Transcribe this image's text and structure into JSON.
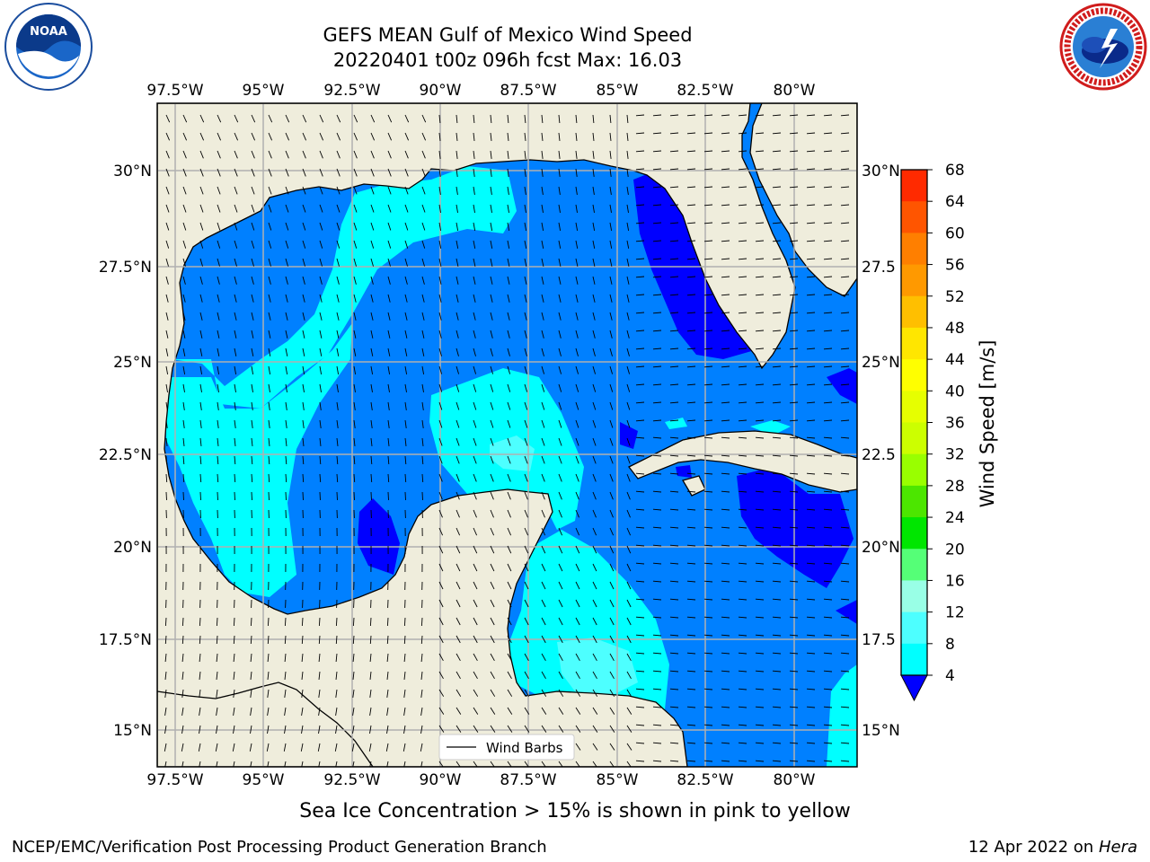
{
  "title_line1": "GEFS MEAN Gulf of Mexico Wind Speed",
  "title_line2": "20220401 t00z 096h fcst   Max: 16.03",
  "lon_labels": [
    "97.5°W",
    "95°W",
    "92.5°W",
    "90°W",
    "87.5°W",
    "85°W",
    "82.5°W",
    "80°W"
  ],
  "lat_labels_left": [
    "30°N",
    "27.5°N",
    "25°N",
    "22.5°N",
    "20°N",
    "17.5°N",
    "15°N"
  ],
  "lat_labels_right": [
    "30°N",
    "27.5",
    "25°N",
    "22.5",
    "20°N",
    "17.5",
    "15°N"
  ],
  "legend_label": "Wind Barbs",
  "colorbar": {
    "label": "Wind Speed [m/s]",
    "ticks": [
      "68",
      "64",
      "60",
      "56",
      "52",
      "48",
      "44",
      "40",
      "36",
      "32",
      "28",
      "24",
      "20",
      "16",
      "12",
      "8",
      "4"
    ],
    "colors": [
      "#ff0000",
      "#ff2a00",
      "#ff5500",
      "#ff7f00",
      "#ff9900",
      "#ffbf00",
      "#ffe600",
      "#ffff00",
      "#e6ff00",
      "#ccff00",
      "#99ff00",
      "#4ce600",
      "#00e600",
      "#55ff77",
      "#99ffe6",
      "#4dffff",
      "#00ffff",
      "#0080ff"
    ],
    "under_color": "#0000ff"
  },
  "colors": {
    "land": "#efeddc",
    "band_4_8": "#0080ff",
    "band_8_12": "#00ffff",
    "band_12_16": "#4dffff",
    "band_under_4": "#0000ff",
    "grid": "#b0b0b0"
  },
  "footer_note": "Sea Ice Concentration > 15% is shown in pink to yellow",
  "footer_credit": "NCEP/EMC/Verification Post Processing Product Generation Branch",
  "footer_date": "12 Apr 2022 on",
  "footer_machine": "Hera",
  "logos": {
    "left": "noaa-logo",
    "left_text": "NOAA",
    "right": "nws-logo"
  }
}
